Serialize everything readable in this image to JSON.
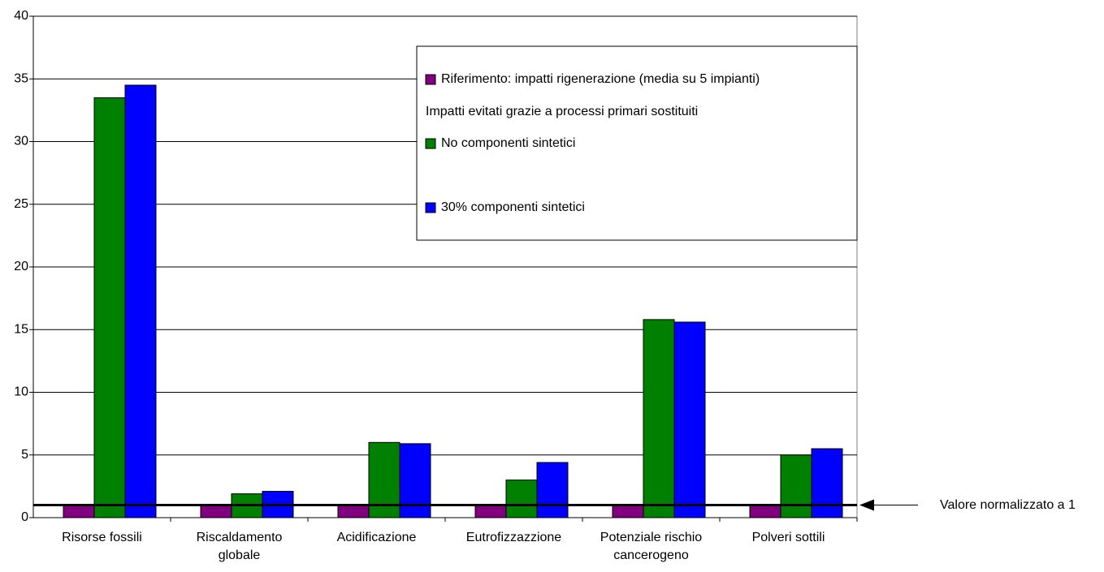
{
  "chart_data": {
    "type": "bar",
    "categories": [
      "Risorse fossili",
      "Riscaldamento\nglobale",
      "Acidificazione",
      "Eutrofizzazzione",
      "Potenziale rischio\ncancerogeno",
      "Polveri sottili"
    ],
    "series": [
      {
        "name": "Riferimento: impatti rigenerazione (media su 5 impianti)",
        "color": "#800080",
        "values": [
          1,
          1,
          1,
          1,
          1,
          1
        ]
      },
      {
        "name": "No componenti sintetici",
        "color": "#008000",
        "values": [
          33.5,
          1.9,
          6,
          3,
          15.8,
          5
        ]
      },
      {
        "name": "30% componenti sintetici",
        "color": "#0000ff",
        "values": [
          34.5,
          2.1,
          5.9,
          4.4,
          15.6,
          5.5
        ]
      }
    ],
    "legend_heading": "Impatti evitati grazie a processi primari sostituiti",
    "reference_line": {
      "value": 1,
      "label": "Valore normalizzato a 1"
    },
    "ylim": [
      0,
      40
    ],
    "yticks": [
      0,
      5,
      10,
      15,
      20,
      25,
      30,
      35,
      40
    ],
    "grid": true,
    "legend": "top-right"
  }
}
